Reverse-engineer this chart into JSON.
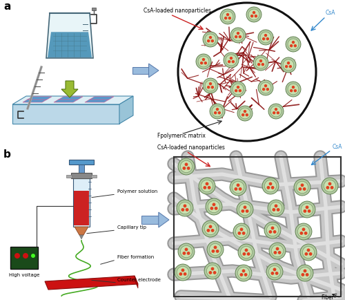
{
  "title_a": "a",
  "title_b": "b",
  "label_csa_loaded": "CsA-loaded nanoparticles",
  "label_csa": "CsA",
  "label_polymeric": "Fpolymeric matrix",
  "label_polymer_solution": "Polymer solution",
  "label_capillary": "Capillary tip",
  "label_fiber_formation": "Fiber formation",
  "label_high_voltage": "High voltage",
  "label_counter": "Counter electrode",
  "label_fiber": "Fiber",
  "bg_color": "#ffffff",
  "nanoparticle_outer": "#b0c8a0",
  "nanoparticle_inner_bg": "#c8e0b0",
  "nanoparticle_dot": "#e04020",
  "fiber_color_b": "#b8b8b8",
  "red_line_color": "#8b1010",
  "arrow_red": "#cc2222",
  "arrow_blue": "#3388cc",
  "arrow_black": "#222222",
  "beaker_body": "#ddeef5",
  "beaker_water": "#6aaabb",
  "beaker_edge": "#446677",
  "syringe_body": "#aaccee",
  "syringe_red": "#cc2222",
  "green_arrow_fill": "#88aa33",
  "blue_arrow_fill": "#99bbdd",
  "blue_arrow_edge": "#5577aa"
}
